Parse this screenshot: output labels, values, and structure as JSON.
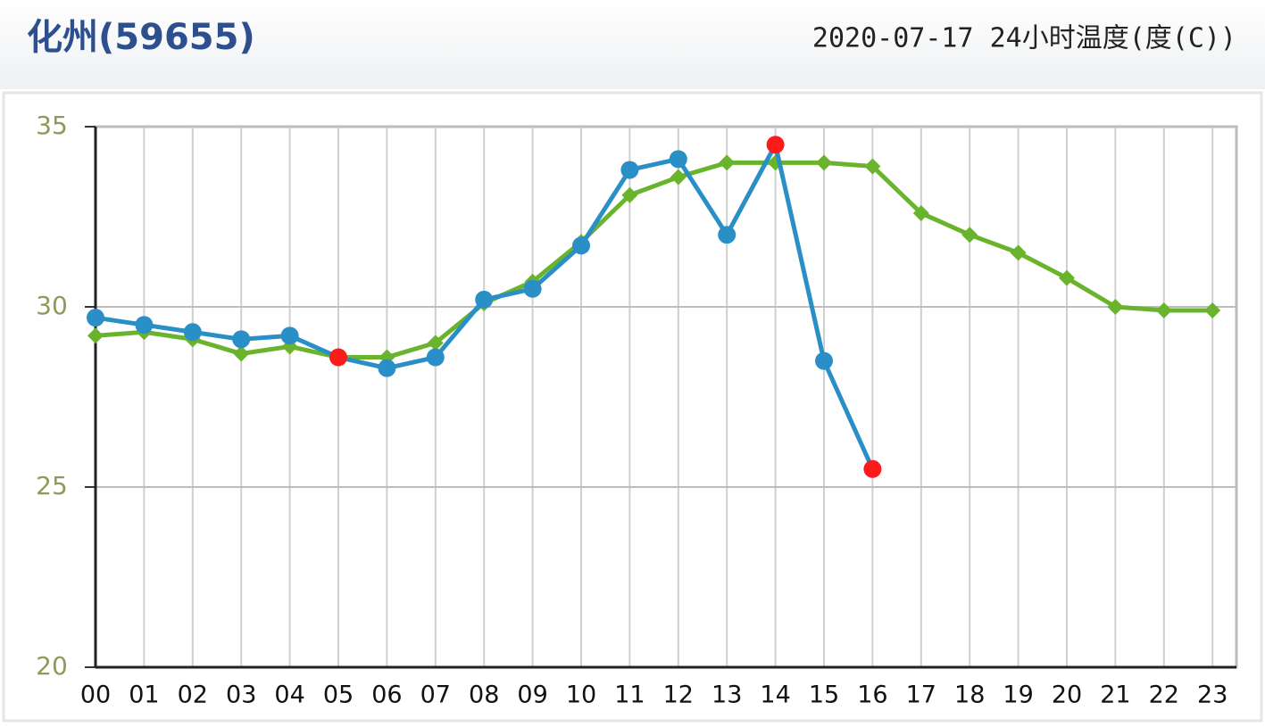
{
  "chart_data": {
    "type": "line",
    "title": "化州(59655)",
    "subtitle": "2020-07-17 24小时温度(度(C))",
    "categories": [
      "00",
      "01",
      "02",
      "03",
      "04",
      "05",
      "06",
      "07",
      "08",
      "09",
      "10",
      "11",
      "12",
      "13",
      "14",
      "15",
      "16",
      "17",
      "18",
      "19",
      "20",
      "21",
      "22",
      "23"
    ],
    "series": [
      {
        "color": "#6ab42d",
        "marker": "diamond",
        "values": [
          29.2,
          29.3,
          29.1,
          28.7,
          28.9,
          28.6,
          28.6,
          29.0,
          30.1,
          30.7,
          31.8,
          33.1,
          33.6,
          34.0,
          34.0,
          34.0,
          33.9,
          32.6,
          32.0,
          31.5,
          30.8,
          30.0,
          29.9,
          29.9
        ]
      },
      {
        "color": "#2a8fc7",
        "marker": "circle",
        "point_colors": [
          "#2a8fc7",
          "#2a8fc7",
          "#2a8fc7",
          "#2a8fc7",
          "#2a8fc7",
          "#ff1a1a",
          "#2a8fc7",
          "#2a8fc7",
          "#2a8fc7",
          "#2a8fc7",
          "#2a8fc7",
          "#2a8fc7",
          "#2a8fc7",
          "#2a8fc7",
          "#ff1a1a",
          "#2a8fc7",
          "#ff1a1a",
          null,
          null,
          null,
          null,
          null,
          null,
          null
        ],
        "values": [
          29.7,
          29.5,
          29.3,
          29.1,
          29.2,
          28.6,
          28.3,
          28.6,
          30.2,
          30.5,
          31.7,
          33.8,
          34.1,
          32.0,
          34.5,
          28.5,
          25.5,
          null,
          null,
          null,
          null,
          null,
          null,
          null
        ]
      }
    ],
    "ylim": [
      20,
      35
    ],
    "yticks": [
      20,
      25,
      30,
      35
    ],
    "grid": true
  }
}
